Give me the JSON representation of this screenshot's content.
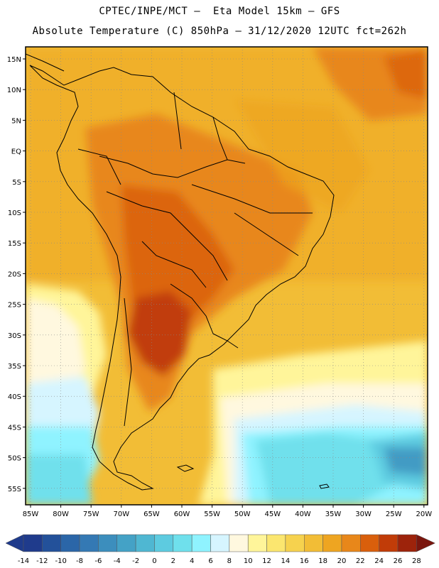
{
  "header": {
    "line1": "CPTEC/INPE/MCT –  Eta Model 15km – GFS",
    "line2": "Absolute Temperature (C) 850hPa – 31/12/2020 12UTC fct=262h"
  },
  "map": {
    "lat_labels": [
      "15N",
      "10N",
      "5N",
      "EQ",
      "5S",
      "10S",
      "15S",
      "20S",
      "25S",
      "30S",
      "35S",
      "40S",
      "45S",
      "50S",
      "55S"
    ],
    "lon_labels": [
      "85W",
      "80W",
      "75W",
      "70W",
      "65W",
      "60W",
      "55W",
      "50W",
      "45W",
      "40W",
      "35W",
      "30W",
      "25W",
      "20W"
    ]
  },
  "legend": {
    "labels": [
      "-14",
      "-12",
      "-10",
      "-8",
      "-6",
      "-4",
      "-2",
      "0",
      "2",
      "4",
      "6",
      "8",
      "10",
      "12",
      "14",
      "16",
      "18",
      "20",
      "22",
      "24",
      "26",
      "28"
    ],
    "colors": [
      "#1f3b8c",
      "#23519a",
      "#2b66a8",
      "#3479b4",
      "#3c8ebd",
      "#44a2c6",
      "#4fb7d2",
      "#5dcbe0",
      "#6fe0ec",
      "#8ff3ff",
      "#d6f5ff",
      "#fff8df",
      "#fff59a",
      "#fbe66f",
      "#f6d24e",
      "#f2bd36",
      "#eea521",
      "#e8871a",
      "#d95f0c",
      "#c13c08",
      "#9d230b",
      "#7a160e"
    ]
  }
}
